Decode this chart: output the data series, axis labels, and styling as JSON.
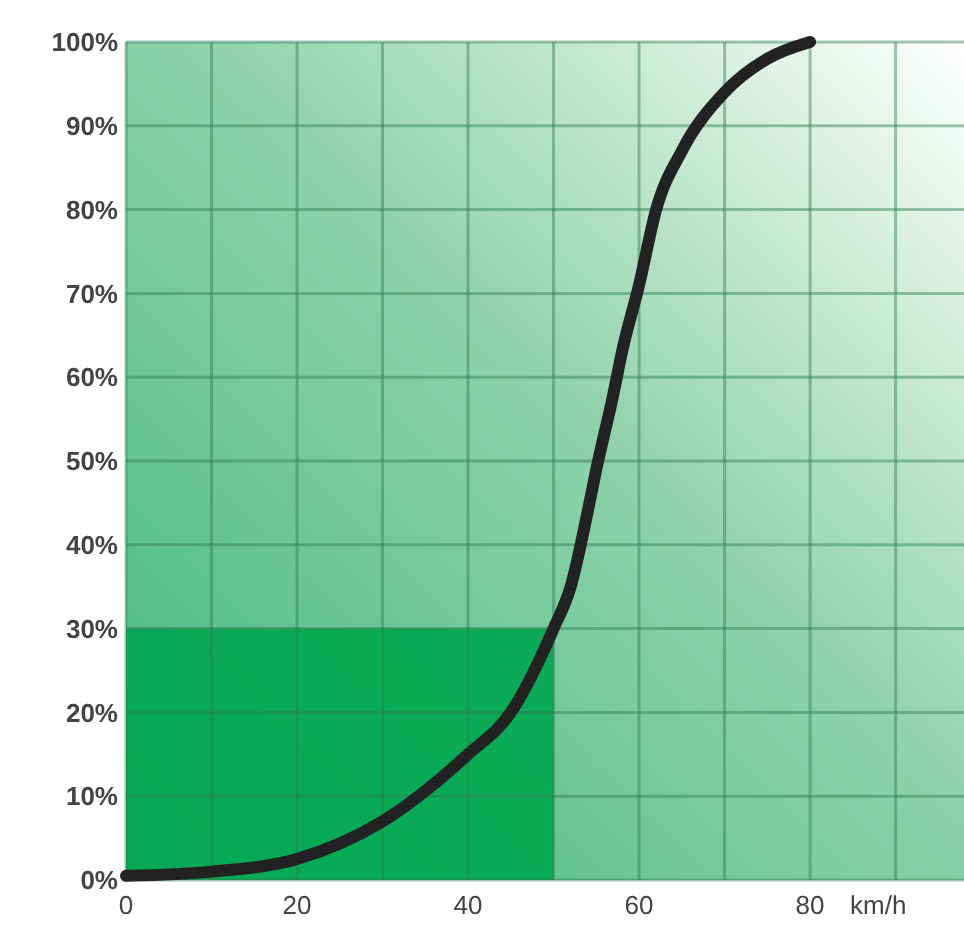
{
  "chart_data": {
    "type": "line",
    "xlabel": "km/h",
    "xlim": [
      0,
      98
    ],
    "xticks": [
      0,
      {
        "value": 10,
        "label": null
      },
      20,
      {
        "value": 30,
        "label": null
      },
      40,
      {
        "value": 50,
        "label": null
      },
      60,
      {
        "value": 70,
        "label": null
      },
      80,
      {
        "value": 90,
        "label": null
      }
    ],
    "ylim": [
      0,
      100
    ],
    "yticks": [
      {
        "value": 0,
        "label": "0%"
      },
      {
        "value": 10,
        "label": "10%"
      },
      {
        "value": 20,
        "label": "20%"
      },
      {
        "value": 30,
        "label": "30%"
      },
      {
        "value": 40,
        "label": "40%"
      },
      {
        "value": 50,
        "label": "50%"
      },
      {
        "value": 60,
        "label": "60%"
      },
      {
        "value": 70,
        "label": "70%"
      },
      {
        "value": 80,
        "label": "80%"
      },
      {
        "value": 90,
        "label": "90%"
      },
      {
        "value": 100,
        "label": "100%"
      }
    ],
    "grid": true,
    "marker": "none",
    "line_style": "solid",
    "series": [
      {
        "type": "area",
        "color": "#00a651",
        "x": [
          0,
          50
        ],
        "values": [
          30,
          30
        ]
      },
      {
        "color": "#222222",
        "x": [
          0,
          10,
          20,
          30,
          40,
          45,
          50,
          52,
          54,
          55,
          57,
          58,
          60,
          62,
          65,
          70,
          75,
          80
        ],
        "values": [
          0.5,
          1,
          2.5,
          7,
          15,
          20,
          30,
          35,
          44,
          49,
          58,
          63,
          71,
          80,
          87,
          94,
          98,
          100
        ]
      }
    ]
  }
}
